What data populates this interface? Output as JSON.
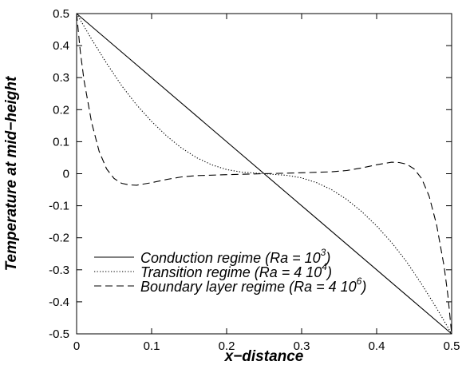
{
  "chart_data": {
    "type": "line",
    "title": "",
    "xlabel": "x−distance",
    "ylabel": "Temperature at mid−height",
    "xlim": [
      0,
      0.5
    ],
    "ylim": [
      -0.5,
      0.5
    ],
    "x_ticks": [
      "0",
      "0.1",
      "0.2",
      "0.3",
      "0.4",
      "0.5"
    ],
    "y_ticks": [
      "0.5",
      "0.4",
      "0.3",
      "0.2",
      "0.1",
      "0",
      "-0.1",
      "-0.2",
      "-0.3",
      "-0.4",
      "-0.5"
    ],
    "grid": false,
    "legend_position": "bottom-left",
    "series": [
      {
        "name": "Conduction regime (Ra = 10³)",
        "legend_main": "Conduction regime (Ra = 10",
        "legend_sup": "3",
        "legend_close": ")",
        "style": "solid",
        "points": [
          [
            0,
            0.5
          ],
          [
            0.5,
            -0.5
          ]
        ]
      },
      {
        "name": "Transition regime (Ra = 4 10⁴)",
        "legend_main": "Transition regime (Ra = 4 10",
        "legend_sup": "4",
        "legend_close": ")",
        "style": "dotted",
        "points": [
          [
            0,
            0.5
          ],
          [
            0.02,
            0.42
          ],
          [
            0.04,
            0.345
          ],
          [
            0.06,
            0.275
          ],
          [
            0.08,
            0.215
          ],
          [
            0.1,
            0.163
          ],
          [
            0.12,
            0.118
          ],
          [
            0.14,
            0.08
          ],
          [
            0.16,
            0.05
          ],
          [
            0.18,
            0.028
          ],
          [
            0.2,
            0.013
          ],
          [
            0.22,
            0.005
          ],
          [
            0.25,
            0
          ],
          [
            0.28,
            -0.005
          ],
          [
            0.3,
            -0.013
          ],
          [
            0.32,
            -0.028
          ],
          [
            0.34,
            -0.05
          ],
          [
            0.36,
            -0.08
          ],
          [
            0.38,
            -0.118
          ],
          [
            0.4,
            -0.163
          ],
          [
            0.42,
            -0.215
          ],
          [
            0.44,
            -0.275
          ],
          [
            0.46,
            -0.345
          ],
          [
            0.48,
            -0.42
          ],
          [
            0.5,
            -0.5
          ]
        ]
      },
      {
        "name": "Boundary layer regime (Ra = 4 10⁶)",
        "legend_main": "Boundary layer regime (Ra =  4 10",
        "legend_sup": "6",
        "legend_close": ")",
        "style": "dashed",
        "points": [
          [
            0,
            0.5
          ],
          [
            0.005,
            0.38
          ],
          [
            0.01,
            0.29
          ],
          [
            0.02,
            0.16
          ],
          [
            0.03,
            0.07
          ],
          [
            0.04,
            0.015
          ],
          [
            0.05,
            -0.015
          ],
          [
            0.06,
            -0.03
          ],
          [
            0.07,
            -0.035
          ],
          [
            0.08,
            -0.036
          ],
          [
            0.1,
            -0.028
          ],
          [
            0.12,
            -0.018
          ],
          [
            0.14,
            -0.01
          ],
          [
            0.16,
            -0.006
          ],
          [
            0.2,
            -0.003
          ],
          [
            0.25,
            0
          ],
          [
            0.3,
            0.003
          ],
          [
            0.34,
            0.006
          ],
          [
            0.36,
            0.01
          ],
          [
            0.38,
            0.018
          ],
          [
            0.4,
            0.028
          ],
          [
            0.42,
            0.036
          ],
          [
            0.43,
            0.035
          ],
          [
            0.44,
            0.03
          ],
          [
            0.45,
            0.015
          ],
          [
            0.46,
            -0.015
          ],
          [
            0.47,
            -0.07
          ],
          [
            0.48,
            -0.16
          ],
          [
            0.49,
            -0.29
          ],
          [
            0.495,
            -0.38
          ],
          [
            0.5,
            -0.5
          ]
        ]
      }
    ]
  }
}
